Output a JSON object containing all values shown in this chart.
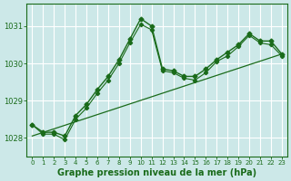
{
  "title": "Graphe pression niveau de la mer (hPa)",
  "background_color": "#cce8e8",
  "grid_color": "#ffffff",
  "line_color": "#1a6b1a",
  "xlim": [
    -0.5,
    23.5
  ],
  "ylim": [
    1027.5,
    1031.6
  ],
  "yticks": [
    1028,
    1029,
    1030,
    1031
  ],
  "xticks": [
    0,
    1,
    2,
    3,
    4,
    5,
    6,
    7,
    8,
    9,
    10,
    11,
    12,
    13,
    14,
    15,
    16,
    17,
    18,
    19,
    20,
    21,
    22,
    23
  ],
  "series1_x": [
    0,
    1,
    2,
    3,
    4,
    5,
    6,
    7,
    8,
    9,
    10,
    11,
    12,
    13,
    14,
    15,
    16,
    17,
    18,
    19,
    20,
    21,
    22,
    23
  ],
  "series1_y": [
    1028.35,
    1028.15,
    1028.15,
    1028.05,
    1028.6,
    1028.9,
    1029.3,
    1029.65,
    1030.1,
    1030.65,
    1031.2,
    1031.0,
    1029.85,
    1029.8,
    1029.65,
    1029.65,
    1029.85,
    1030.1,
    1030.3,
    1030.5,
    1030.8,
    1030.6,
    1030.6,
    1030.25
  ],
  "series2_x": [
    0,
    1,
    2,
    3,
    4,
    5,
    6,
    7,
    8,
    9,
    10,
    11,
    12,
    13,
    14,
    15,
    16,
    17,
    18,
    19,
    20,
    21,
    22,
    23
  ],
  "series2_y": [
    1028.35,
    1028.1,
    1028.1,
    1027.95,
    1028.5,
    1028.8,
    1029.2,
    1029.55,
    1030.0,
    1030.55,
    1031.05,
    1030.9,
    1029.8,
    1029.75,
    1029.6,
    1029.55,
    1029.75,
    1030.05,
    1030.2,
    1030.45,
    1030.75,
    1030.55,
    1030.5,
    1030.2
  ],
  "trend_x": [
    0,
    23
  ],
  "trend_y": [
    1028.05,
    1030.25
  ],
  "tick_fontsize": 6,
  "title_fontsize": 7
}
